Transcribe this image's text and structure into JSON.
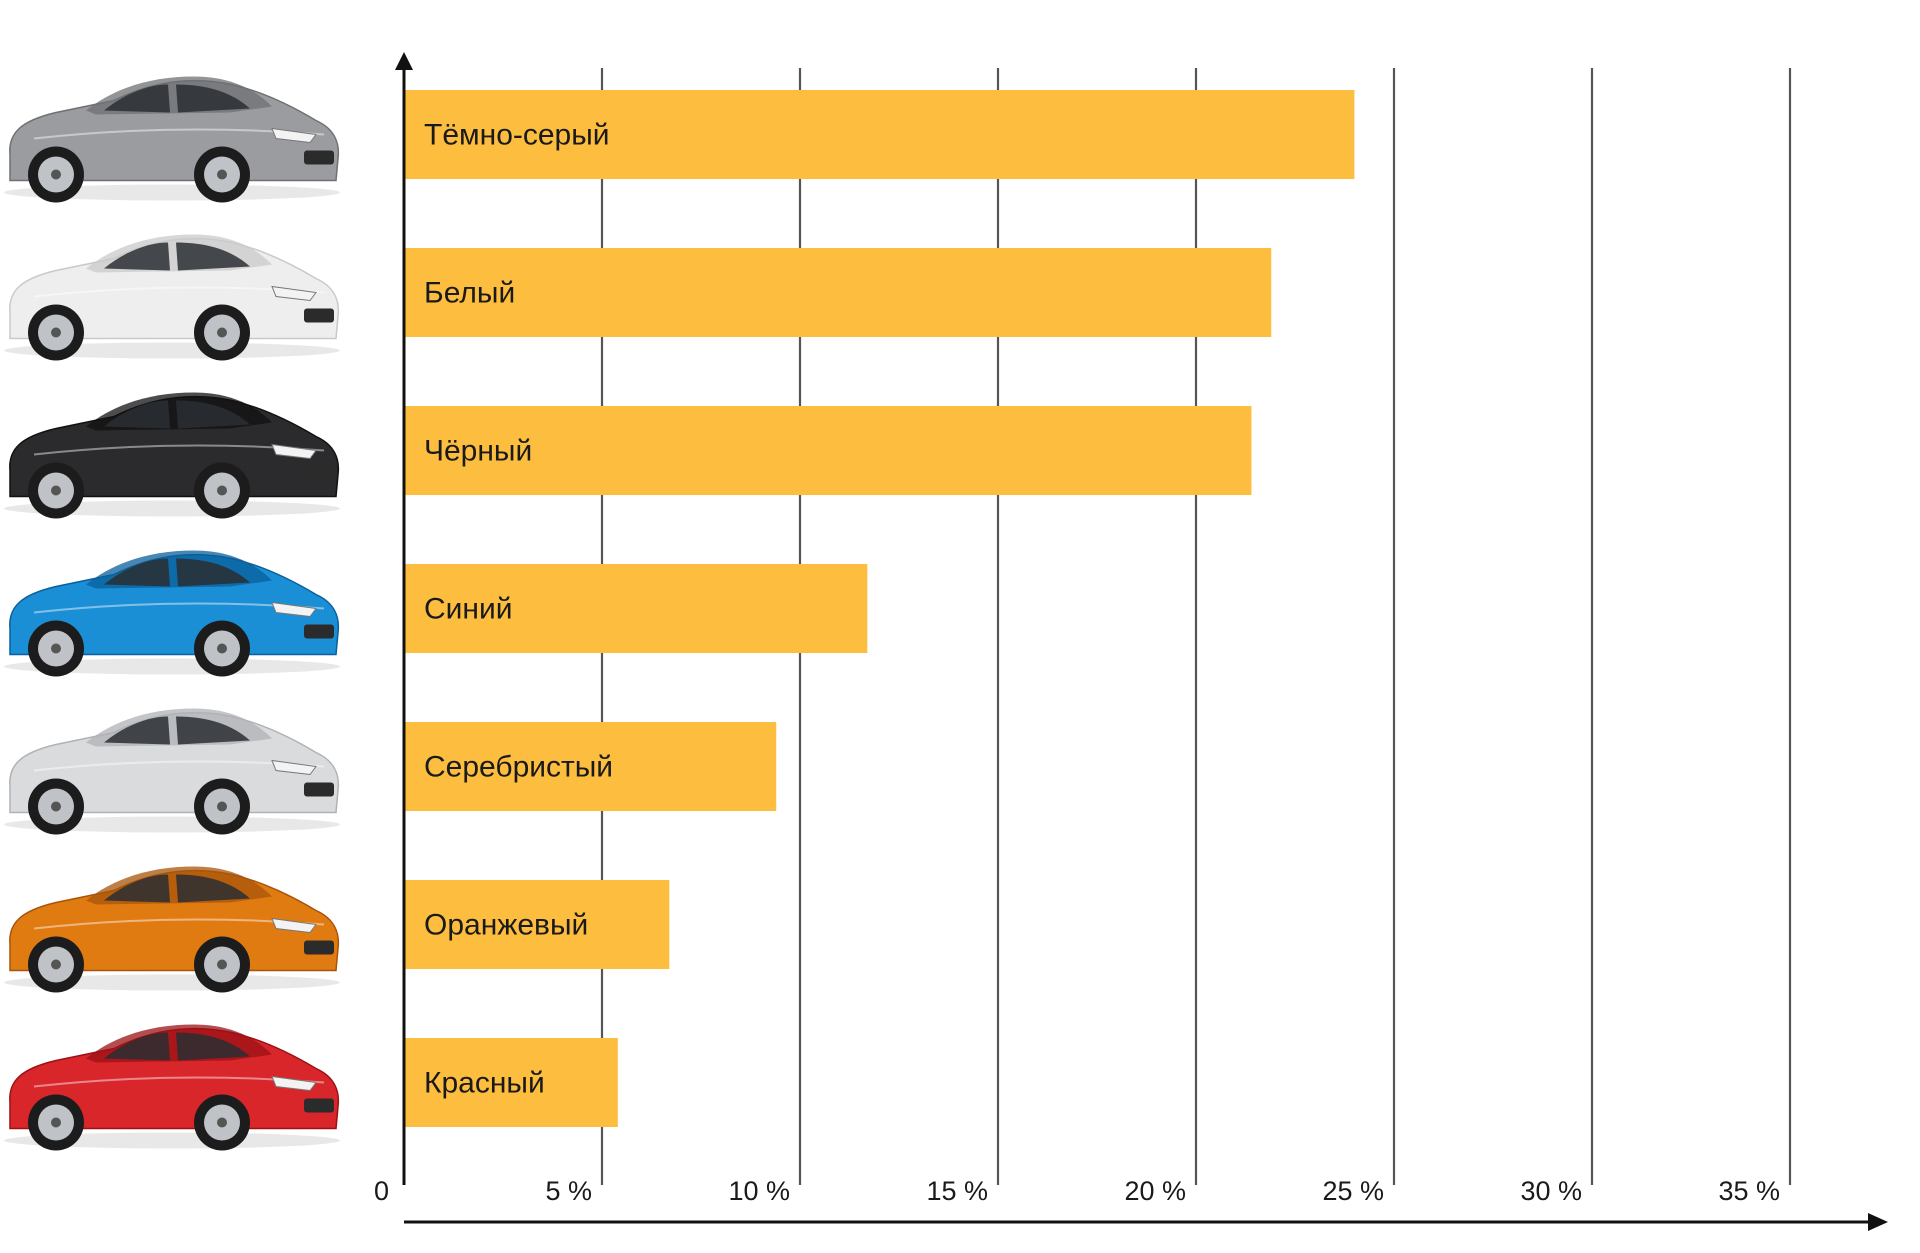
{
  "colors": {
    "bar": "#FDBE3F",
    "grid": "#555555",
    "axis": "#111111",
    "text": "#1a1a1a"
  },
  "chart_data": {
    "type": "bar",
    "orientation": "horizontal",
    "title": "",
    "xlabel": "",
    "ylabel": "",
    "xlim": [
      0,
      37.5
    ],
    "grid": true,
    "x_ticks": [
      0,
      5,
      10,
      15,
      20,
      25,
      30,
      35
    ],
    "tick_labels": [
      "0",
      "5 %",
      "10 %",
      "15 %",
      "20 %",
      "25 %",
      "30 %",
      "35 %"
    ],
    "categories": [
      "Тёмно-серый",
      "Белый",
      "Чёрный",
      "Синий",
      "Серебристый",
      "Оранжевый",
      "Красный"
    ],
    "values": [
      24.0,
      21.9,
      21.4,
      11.7,
      9.4,
      6.7,
      5.4
    ],
    "icons": [
      {
        "name": "car-dark-gray-icon",
        "body": "#9a9c9f",
        "shade": "#6e7073"
      },
      {
        "name": "car-white-icon",
        "body": "#eeeeee",
        "shade": "#c9c9c9"
      },
      {
        "name": "car-black-icon",
        "body": "#2b2b2d",
        "shade": "#111112"
      },
      {
        "name": "car-blue-icon",
        "body": "#1b8fd6",
        "shade": "#0b5f9b"
      },
      {
        "name": "car-silver-icon",
        "body": "#d9dbdd",
        "shade": "#b0b2b5"
      },
      {
        "name": "car-orange-icon",
        "body": "#e07b12",
        "shade": "#a8540a"
      },
      {
        "name": "car-red-icon",
        "body": "#d8262a",
        "shade": "#9b1115"
      }
    ]
  }
}
